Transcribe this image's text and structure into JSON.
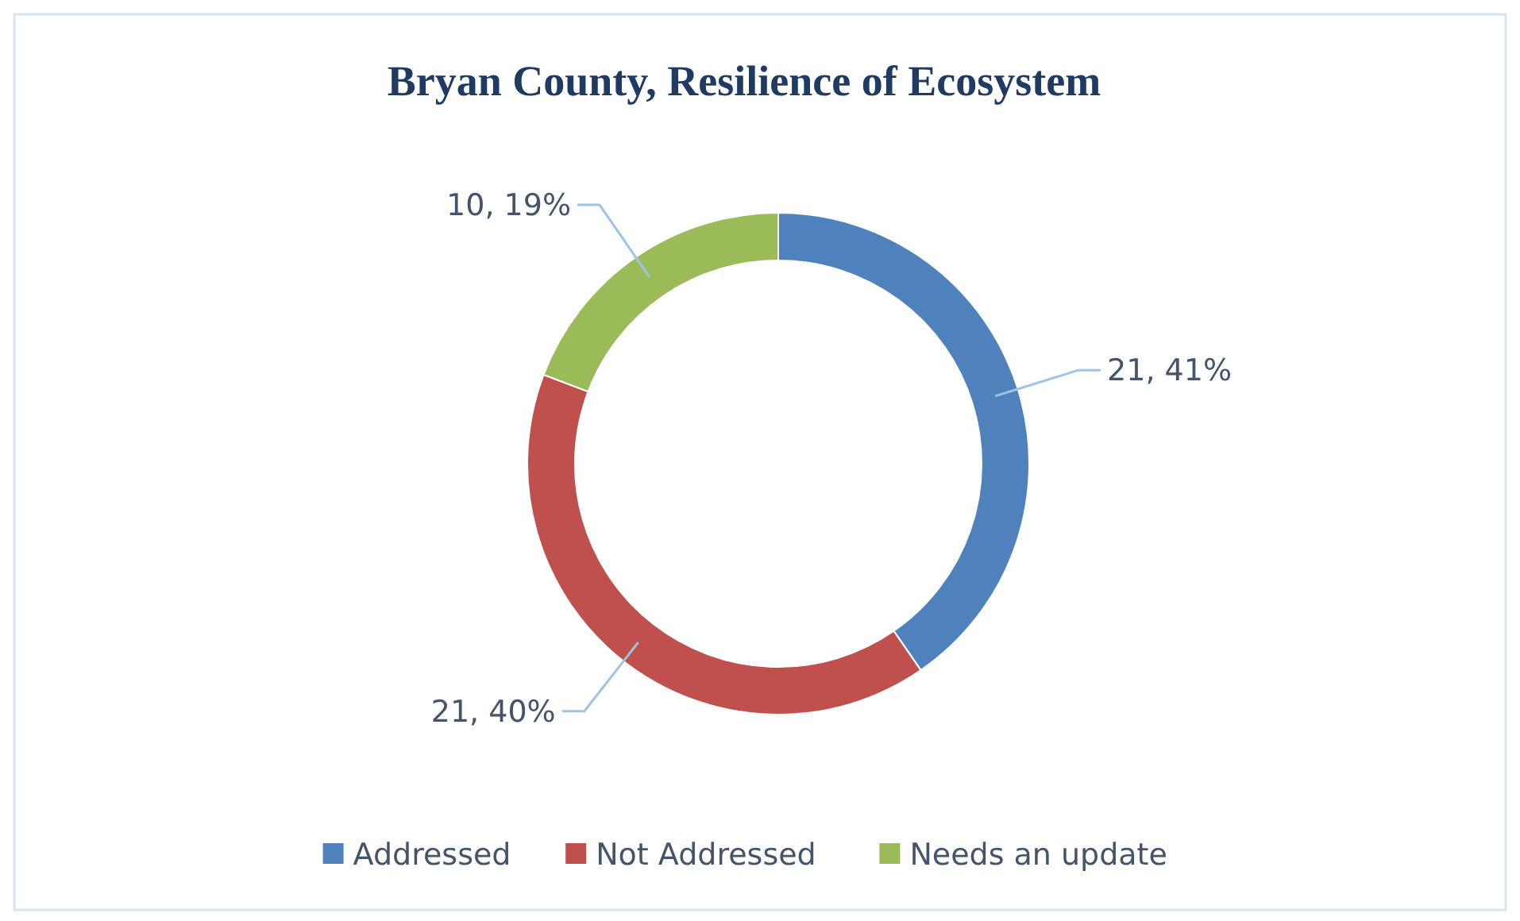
{
  "chart_data": {
    "type": "donut",
    "title": "Bryan County, Resilience of Ecosystem",
    "categories": [
      "Addressed",
      "Not Addressed",
      "Needs an update"
    ],
    "values": [
      21,
      21,
      10
    ],
    "colors": [
      "#4f81bd",
      "#c0504d",
      "#9bbb59"
    ],
    "value_labels": [
      "21, 41%",
      "21, 40%",
      "10, 19%"
    ],
    "legend": "bottom"
  }
}
